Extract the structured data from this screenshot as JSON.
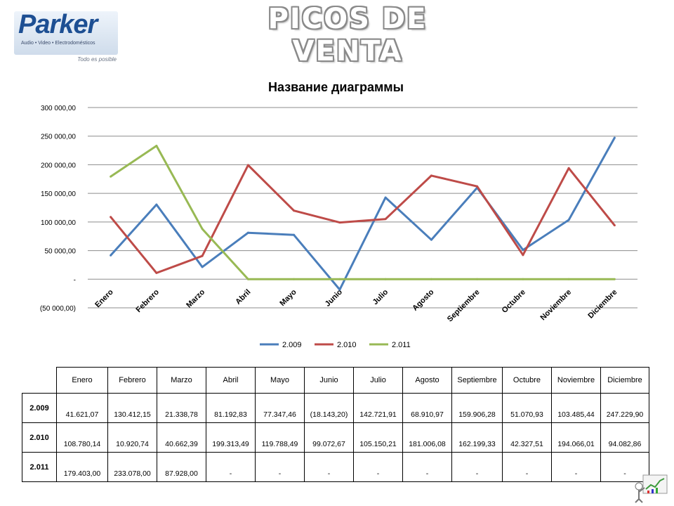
{
  "logo": {
    "word": "Parker",
    "subtitle": "Audio • Video • Electrodomésticos",
    "slogan": "Todo es posible"
  },
  "slide_title": "PICOS DE VENTA",
  "chart_data": {
    "type": "line",
    "title": "Название диаграммы",
    "categories": [
      "Enero",
      "Febrero",
      "Marzo",
      "Abril",
      "Mayo",
      "Junio",
      "Julio",
      "Agosto",
      "Septiembre",
      "Octubre",
      "Noviembre",
      "Diciembre"
    ],
    "ylim": [
      -50000,
      300000
    ],
    "yticks": [
      -50000,
      0,
      50000,
      100000,
      150000,
      200000,
      250000,
      300000
    ],
    "ytick_labels": [
      "(50 000,00)",
      "-",
      "50 000,00",
      "100 000,00",
      "150 000,00",
      "200 000,00",
      "250 000,00",
      "300 000,00"
    ],
    "grid": true,
    "legend": "bottom",
    "series": [
      {
        "name": "2.009",
        "color": "#4a7ebb",
        "values": [
          41621.07,
          130412.15,
          21338.78,
          81192.83,
          77347.46,
          -18143.2,
          142721.91,
          68910.97,
          159906.28,
          51070.93,
          103485.44,
          247229.9
        ]
      },
      {
        "name": "2.010",
        "color": "#be4b48",
        "values": [
          108780.14,
          10920.74,
          40662.39,
          199313.49,
          119788.49,
          99072.67,
          105150.21,
          181006.08,
          162199.33,
          42327.51,
          194066.01,
          94082.86
        ]
      },
      {
        "name": "2.011",
        "color": "#98b954",
        "values": [
          179403.0,
          233078.0,
          87928.0,
          0,
          0,
          0,
          0,
          0,
          0,
          0,
          0,
          0
        ]
      }
    ]
  },
  "table": {
    "columns": [
      "Enero",
      "Febrero",
      "Marzo",
      "Abril",
      "Mayo",
      "Junio",
      "Julio",
      "Agosto",
      "Septiembre",
      "Octubre",
      "Noviembre",
      "Diciembre"
    ],
    "rows": [
      {
        "label": "2.009",
        "cells": [
          "41.621,07",
          "130.412,15",
          "21.338,78",
          "81.192,83",
          "77.347,46",
          "(18.143,20)",
          "142.721,91",
          "68.910,97",
          "159.906,28",
          "51.070,93",
          "103.485,44",
          "247.229,90"
        ]
      },
      {
        "label": "2.010",
        "cells": [
          "108.780,14",
          "10.920,74",
          "40.662,39",
          "199.313,49",
          "119.788,49",
          "99.072,67",
          "105.150,21",
          "181.006,08",
          "162.199,33",
          "42.327,51",
          "194.066,01",
          "94.082,86"
        ]
      },
      {
        "label": "2.011",
        "cells": [
          "179.403,00",
          "233.078,00",
          "87.928,00",
          "-",
          "-",
          "-",
          "-",
          "-",
          "-",
          "-",
          "-",
          "-"
        ]
      }
    ]
  },
  "icons": {
    "mascot": "chart-figure-icon"
  }
}
